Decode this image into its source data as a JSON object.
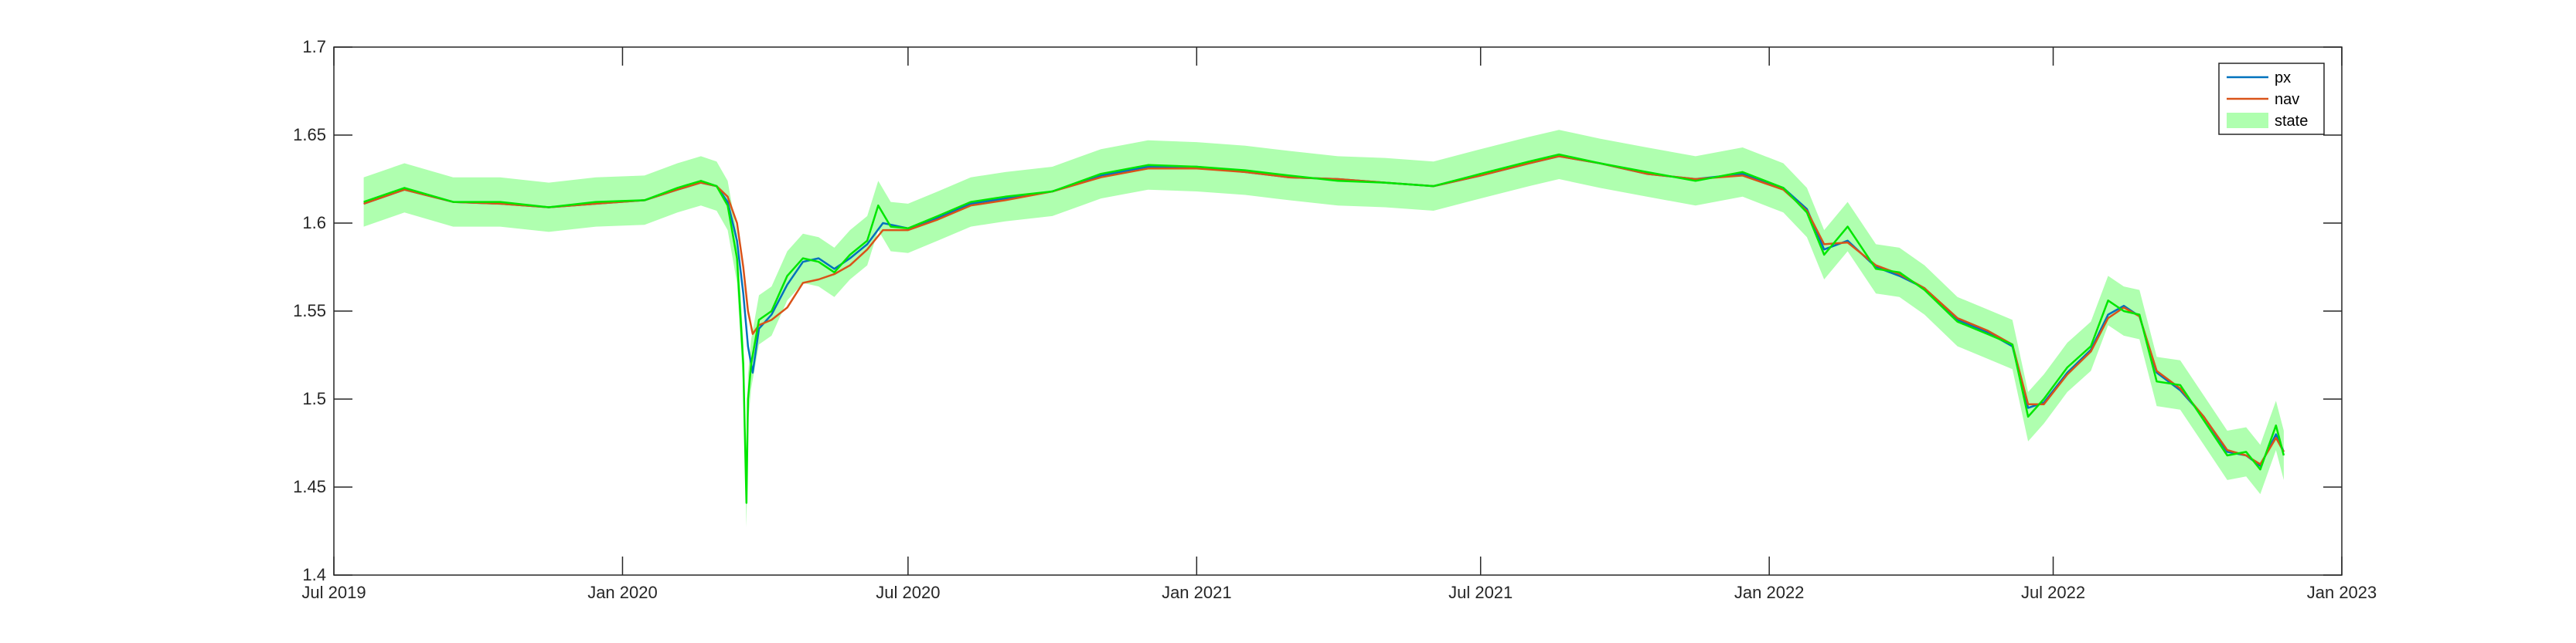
{
  "chart_data": {
    "type": "line",
    "title": "",
    "xlabel": "",
    "ylabel": "",
    "xlim": [
      "2019-07-01",
      "2023-01-01"
    ],
    "ylim": [
      1.4,
      1.7
    ],
    "x_ticks": [
      {
        "date": "2019-07-01",
        "label": "Jul 2019"
      },
      {
        "date": "2020-01-01",
        "label": "Jan 2020"
      },
      {
        "date": "2020-07-01",
        "label": "Jul 2020"
      },
      {
        "date": "2021-01-01",
        "label": "Jan 2021"
      },
      {
        "date": "2021-07-01",
        "label": "Jul 2021"
      },
      {
        "date": "2022-01-01",
        "label": "Jan 2022"
      },
      {
        "date": "2022-07-01",
        "label": "Jul 2022"
      },
      {
        "date": "2023-01-01",
        "label": "Jan 2023"
      }
    ],
    "y_ticks": [
      {
        "value": 1.4,
        "label": "1.4"
      },
      {
        "value": 1.45,
        "label": "1.45"
      },
      {
        "value": 1.5,
        "label": "1.5"
      },
      {
        "value": 1.55,
        "label": "1.55"
      },
      {
        "value": 1.6,
        "label": "1.6"
      },
      {
        "value": 1.65,
        "label": "1.65"
      },
      {
        "value": 1.7,
        "label": "1.7"
      }
    ],
    "grid": false,
    "legend_position": "top-right",
    "series": [
      {
        "name": "px",
        "kind": "line",
        "color": "#0072BD",
        "points": [
          [
            "2019-07-20",
            1.611
          ],
          [
            "2019-08-15",
            1.619
          ],
          [
            "2019-09-15",
            1.612
          ],
          [
            "2019-10-15",
            1.611
          ],
          [
            "2019-11-15",
            1.609
          ],
          [
            "2019-12-15",
            1.611
          ],
          [
            "2020-01-15",
            1.613
          ],
          [
            "2020-02-05",
            1.619
          ],
          [
            "2020-02-20",
            1.623
          ],
          [
            "2020-03-01",
            1.621
          ],
          [
            "2020-03-08",
            1.612
          ],
          [
            "2020-03-14",
            1.59
          ],
          [
            "2020-03-18",
            1.56
          ],
          [
            "2020-03-21",
            1.53
          ],
          [
            "2020-03-24",
            1.515
          ],
          [
            "2020-03-28",
            1.54
          ],
          [
            "2020-04-05",
            1.548
          ],
          [
            "2020-04-15",
            1.565
          ],
          [
            "2020-04-25",
            1.578
          ],
          [
            "2020-05-05",
            1.58
          ],
          [
            "2020-05-15",
            1.574
          ],
          [
            "2020-05-25",
            1.58
          ],
          [
            "2020-06-05",
            1.588
          ],
          [
            "2020-06-15",
            1.6
          ],
          [
            "2020-07-01",
            1.597
          ],
          [
            "2020-07-20",
            1.603
          ],
          [
            "2020-08-10",
            1.611
          ],
          [
            "2020-09-01",
            1.614
          ],
          [
            "2020-10-01",
            1.618
          ],
          [
            "2020-11-01",
            1.627
          ],
          [
            "2020-12-01",
            1.632
          ],
          [
            "2021-01-01",
            1.632
          ],
          [
            "2021-02-01",
            1.629
          ],
          [
            "2021-03-01",
            1.626
          ],
          [
            "2021-04-01",
            1.625
          ],
          [
            "2021-05-01",
            1.623
          ],
          [
            "2021-06-01",
            1.621
          ],
          [
            "2021-07-01",
            1.627
          ],
          [
            "2021-08-01",
            1.634
          ],
          [
            "2021-08-20",
            1.638
          ],
          [
            "2021-09-15",
            1.634
          ],
          [
            "2021-10-15",
            1.628
          ],
          [
            "2021-11-15",
            1.625
          ],
          [
            "2021-12-15",
            1.628
          ],
          [
            "2022-01-10",
            1.62
          ],
          [
            "2022-01-25",
            1.608
          ],
          [
            "2022-02-05",
            1.585
          ],
          [
            "2022-02-20",
            1.59
          ],
          [
            "2022-03-10",
            1.575
          ],
          [
            "2022-03-25",
            1.57
          ],
          [
            "2022-04-10",
            1.563
          ],
          [
            "2022-05-01",
            1.545
          ],
          [
            "2022-05-20",
            1.538
          ],
          [
            "2022-06-05",
            1.53
          ],
          [
            "2022-06-15",
            1.495
          ],
          [
            "2022-06-25",
            1.498
          ],
          [
            "2022-07-10",
            1.515
          ],
          [
            "2022-07-25",
            1.528
          ],
          [
            "2022-08-05",
            1.548
          ],
          [
            "2022-08-15",
            1.553
          ],
          [
            "2022-08-25",
            1.547
          ],
          [
            "2022-09-05",
            1.515
          ],
          [
            "2022-09-20",
            1.505
          ],
          [
            "2022-10-05",
            1.49
          ],
          [
            "2022-10-20",
            1.47
          ],
          [
            "2022-11-01",
            1.468
          ],
          [
            "2022-11-10",
            1.462
          ],
          [
            "2022-11-20",
            1.48
          ],
          [
            "2022-11-25",
            1.47
          ]
        ]
      },
      {
        "name": "nav",
        "kind": "line",
        "color": "#D95319",
        "points": [
          [
            "2019-07-20",
            1.611
          ],
          [
            "2019-08-15",
            1.619
          ],
          [
            "2019-09-15",
            1.612
          ],
          [
            "2019-10-15",
            1.611
          ],
          [
            "2019-11-15",
            1.609
          ],
          [
            "2019-12-15",
            1.611
          ],
          [
            "2020-01-15",
            1.613
          ],
          [
            "2020-02-05",
            1.619
          ],
          [
            "2020-02-20",
            1.623
          ],
          [
            "2020-03-01",
            1.621
          ],
          [
            "2020-03-08",
            1.615
          ],
          [
            "2020-03-14",
            1.6
          ],
          [
            "2020-03-18",
            1.575
          ],
          [
            "2020-03-21",
            1.55
          ],
          [
            "2020-03-24",
            1.537
          ],
          [
            "2020-03-28",
            1.542
          ],
          [
            "2020-04-05",
            1.545
          ],
          [
            "2020-04-15",
            1.552
          ],
          [
            "2020-04-25",
            1.566
          ],
          [
            "2020-05-05",
            1.568
          ],
          [
            "2020-05-15",
            1.571
          ],
          [
            "2020-05-25",
            1.576
          ],
          [
            "2020-06-05",
            1.585
          ],
          [
            "2020-06-15",
            1.596
          ],
          [
            "2020-07-01",
            1.596
          ],
          [
            "2020-07-20",
            1.602
          ],
          [
            "2020-08-10",
            1.61
          ],
          [
            "2020-09-01",
            1.613
          ],
          [
            "2020-10-01",
            1.618
          ],
          [
            "2020-11-01",
            1.626
          ],
          [
            "2020-12-01",
            1.631
          ],
          [
            "2021-01-01",
            1.631
          ],
          [
            "2021-02-01",
            1.629
          ],
          [
            "2021-03-01",
            1.626
          ],
          [
            "2021-04-01",
            1.625
          ],
          [
            "2021-05-01",
            1.623
          ],
          [
            "2021-06-01",
            1.621
          ],
          [
            "2021-07-01",
            1.627
          ],
          [
            "2021-08-01",
            1.634
          ],
          [
            "2021-08-20",
            1.638
          ],
          [
            "2021-09-15",
            1.634
          ],
          [
            "2021-10-15",
            1.628
          ],
          [
            "2021-11-15",
            1.625
          ],
          [
            "2021-12-15",
            1.627
          ],
          [
            "2022-01-10",
            1.619
          ],
          [
            "2022-01-25",
            1.607
          ],
          [
            "2022-02-05",
            1.588
          ],
          [
            "2022-02-20",
            1.589
          ],
          [
            "2022-03-10",
            1.576
          ],
          [
            "2022-03-25",
            1.571
          ],
          [
            "2022-04-10",
            1.563
          ],
          [
            "2022-05-01",
            1.546
          ],
          [
            "2022-05-20",
            1.539
          ],
          [
            "2022-06-05",
            1.531
          ],
          [
            "2022-06-15",
            1.497
          ],
          [
            "2022-06-25",
            1.497
          ],
          [
            "2022-07-10",
            1.514
          ],
          [
            "2022-07-25",
            1.527
          ],
          [
            "2022-08-05",
            1.546
          ],
          [
            "2022-08-15",
            1.552
          ],
          [
            "2022-08-25",
            1.547
          ],
          [
            "2022-09-05",
            1.516
          ],
          [
            "2022-09-20",
            1.506
          ],
          [
            "2022-10-05",
            1.49
          ],
          [
            "2022-10-20",
            1.471
          ],
          [
            "2022-11-01",
            1.468
          ],
          [
            "2022-11-10",
            1.463
          ],
          [
            "2022-11-20",
            1.478
          ],
          [
            "2022-11-25",
            1.47
          ]
        ]
      },
      {
        "name": "state",
        "kind": "band",
        "color": "#AFFFAF",
        "center_color": "#00E600",
        "half_width": 0.014,
        "points": [
          [
            "2019-07-20",
            1.612
          ],
          [
            "2019-08-15",
            1.62
          ],
          [
            "2019-09-15",
            1.612
          ],
          [
            "2019-10-15",
            1.612
          ],
          [
            "2019-11-15",
            1.609
          ],
          [
            "2019-12-15",
            1.612
          ],
          [
            "2020-01-15",
            1.613
          ],
          [
            "2020-02-05",
            1.62
          ],
          [
            "2020-02-20",
            1.624
          ],
          [
            "2020-03-01",
            1.621
          ],
          [
            "2020-03-08",
            1.61
          ],
          [
            "2020-03-14",
            1.58
          ],
          [
            "2020-03-18",
            1.52
          ],
          [
            "2020-03-20",
            1.441
          ],
          [
            "2020-03-21",
            1.5
          ],
          [
            "2020-03-23",
            1.52
          ],
          [
            "2020-03-28",
            1.545
          ],
          [
            "2020-04-05",
            1.55
          ],
          [
            "2020-04-15",
            1.57
          ],
          [
            "2020-04-25",
            1.58
          ],
          [
            "2020-05-05",
            1.578
          ],
          [
            "2020-05-15",
            1.572
          ],
          [
            "2020-05-25",
            1.582
          ],
          [
            "2020-06-05",
            1.59
          ],
          [
            "2020-06-12",
            1.61
          ],
          [
            "2020-06-20",
            1.598
          ],
          [
            "2020-07-01",
            1.597
          ],
          [
            "2020-07-20",
            1.604
          ],
          [
            "2020-08-10",
            1.612
          ],
          [
            "2020-09-01",
            1.615
          ],
          [
            "2020-10-01",
            1.618
          ],
          [
            "2020-11-01",
            1.628
          ],
          [
            "2020-12-01",
            1.633
          ],
          [
            "2021-01-01",
            1.632
          ],
          [
            "2021-02-01",
            1.63
          ],
          [
            "2021-03-01",
            1.627
          ],
          [
            "2021-04-01",
            1.624
          ],
          [
            "2021-05-01",
            1.623
          ],
          [
            "2021-06-01",
            1.621
          ],
          [
            "2021-07-01",
            1.628
          ],
          [
            "2021-08-01",
            1.635
          ],
          [
            "2021-08-20",
            1.639
          ],
          [
            "2021-09-15",
            1.634
          ],
          [
            "2021-10-15",
            1.629
          ],
          [
            "2021-11-15",
            1.624
          ],
          [
            "2021-12-15",
            1.629
          ],
          [
            "2022-01-10",
            1.62
          ],
          [
            "2022-01-25",
            1.606
          ],
          [
            "2022-02-05",
            1.582
          ],
          [
            "2022-02-20",
            1.598
          ],
          [
            "2022-03-10",
            1.574
          ],
          [
            "2022-03-25",
            1.572
          ],
          [
            "2022-04-10",
            1.562
          ],
          [
            "2022-05-01",
            1.544
          ],
          [
            "2022-05-20",
            1.537
          ],
          [
            "2022-06-05",
            1.531
          ],
          [
            "2022-06-15",
            1.49
          ],
          [
            "2022-06-25",
            1.5
          ],
          [
            "2022-07-10",
            1.518
          ],
          [
            "2022-07-25",
            1.53
          ],
          [
            "2022-08-05",
            1.556
          ],
          [
            "2022-08-15",
            1.55
          ],
          [
            "2022-08-25",
            1.548
          ],
          [
            "2022-09-05",
            1.51
          ],
          [
            "2022-09-20",
            1.508
          ],
          [
            "2022-10-05",
            1.488
          ],
          [
            "2022-10-20",
            1.468
          ],
          [
            "2022-11-01",
            1.47
          ],
          [
            "2022-11-10",
            1.46
          ],
          [
            "2022-11-20",
            1.485
          ],
          [
            "2022-11-25",
            1.468
          ]
        ]
      }
    ]
  }
}
